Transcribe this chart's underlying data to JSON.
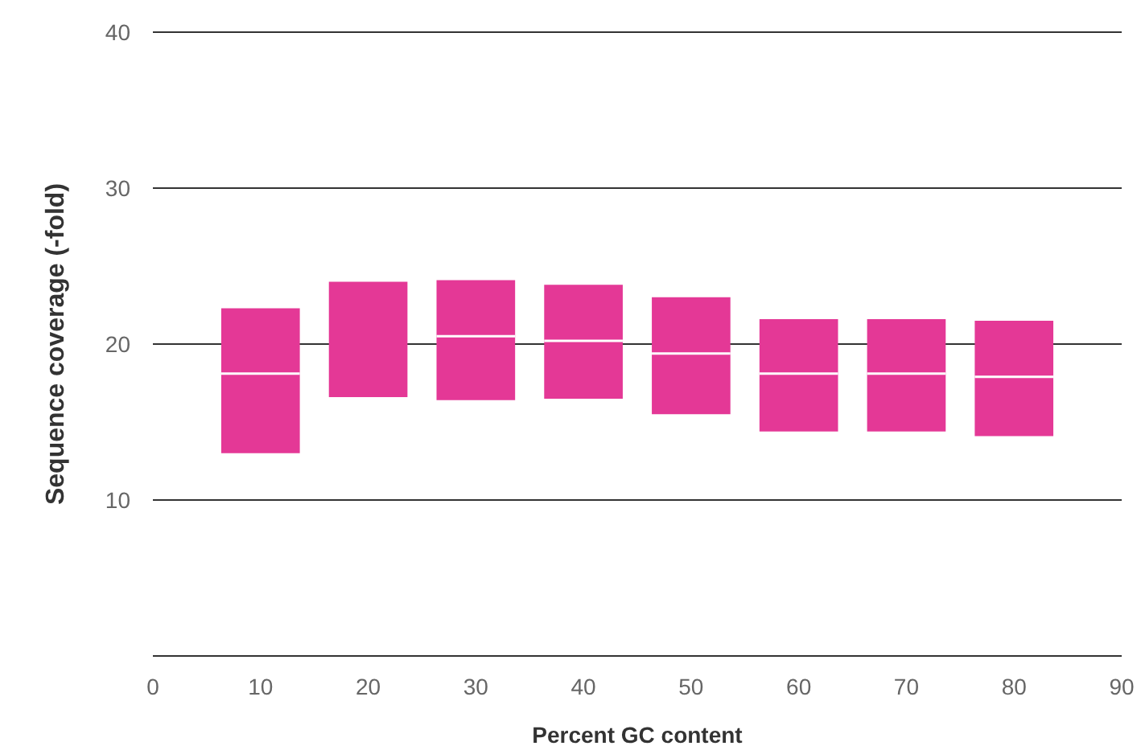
{
  "chart_data": {
    "type": "box",
    "xlabel": "Percent GC content",
    "ylabel": "Sequence coverage (-fold)",
    "x": [
      10,
      20,
      30,
      40,
      50,
      60,
      70,
      80
    ],
    "color": "#e43896",
    "boxes": [
      {
        "low": 13.0,
        "q1": 13.0,
        "median": 18.1,
        "q3": 22.3,
        "high": 22.3
      },
      {
        "low": 16.6,
        "q1": 16.6,
        "median": null,
        "q3": 24.0,
        "high": 24.0
      },
      {
        "low": 16.4,
        "q1": 16.4,
        "median": 20.5,
        "q3": 24.1,
        "high": 24.1
      },
      {
        "low": 16.5,
        "q1": 16.5,
        "median": 20.2,
        "q3": 23.8,
        "high": 23.8
      },
      {
        "low": 15.5,
        "q1": 15.5,
        "median": 19.4,
        "q3": 23.0,
        "high": 23.0
      },
      {
        "low": 14.4,
        "q1": 14.4,
        "median": 18.1,
        "q3": 21.6,
        "high": 21.6
      },
      {
        "low": 14.4,
        "q1": 14.4,
        "median": 18.1,
        "q3": 21.6,
        "high": 21.6
      },
      {
        "low": 14.1,
        "q1": 14.1,
        "median": 17.9,
        "q3": 21.5,
        "high": 21.5
      }
    ],
    "xlim": [
      0,
      90
    ],
    "xticks": [
      0,
      10,
      20,
      30,
      40,
      50,
      60,
      70,
      80,
      90
    ],
    "ylim": [
      0,
      40
    ],
    "yticks": [
      {
        "value": 0,
        "label": null
      },
      10,
      20,
      30,
      40
    ],
    "grid": "y"
  }
}
